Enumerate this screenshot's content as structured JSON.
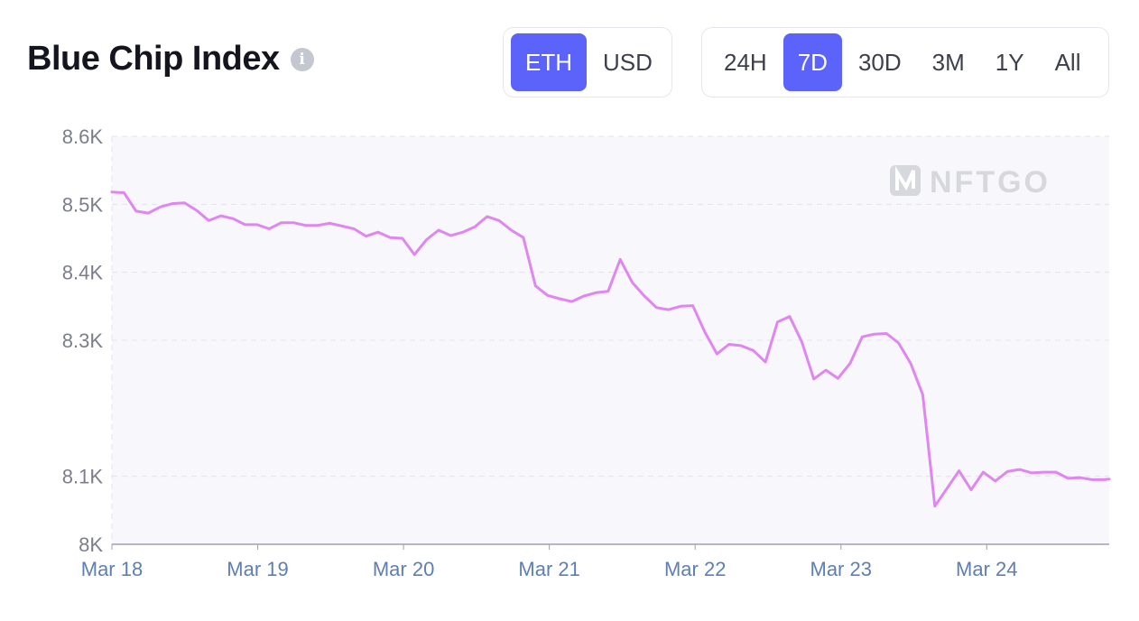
{
  "header": {
    "title": "Blue Chip Index",
    "info_icon": "info-icon"
  },
  "currency_toggle": {
    "options": [
      "ETH",
      "USD"
    ],
    "selected": "ETH"
  },
  "range_toggle": {
    "options": [
      "24H",
      "7D",
      "30D",
      "3M",
      "1Y",
      "All"
    ],
    "selected": "7D"
  },
  "watermark": "NFTGO",
  "colors": {
    "accent": "#5b63fb",
    "line": "#e086f0",
    "plot_bg": "#f8f7fc",
    "grid": "#e3e4ea",
    "axis": "#9ea0ad"
  },
  "chart_data": {
    "type": "line",
    "title": "",
    "xlabel": "",
    "ylabel": "",
    "grid": true,
    "ylim": [
      8000,
      8600
    ],
    "yticks": [
      8000,
      8100,
      8300,
      8400,
      8500,
      8600
    ],
    "ytick_labels": [
      "8K",
      "8.1K",
      "8.3K",
      "8.4K",
      "8.5K",
      "8.6K"
    ],
    "xlim": [
      0,
      6.84
    ],
    "xticks": [
      0,
      1,
      2,
      3,
      4,
      5,
      6
    ],
    "xtick_labels": [
      "Mar 18",
      "Mar 19",
      "Mar 20",
      "Mar 21",
      "Mar 22",
      "Mar 23",
      "Mar 24"
    ],
    "series": [
      {
        "x": [
          0,
          0.083,
          0.166,
          0.249,
          0.332,
          0.415,
          0.498,
          0.581,
          0.664,
          0.747,
          0.83,
          0.913,
          0.996,
          1.079,
          1.162,
          1.245,
          1.328,
          1.411,
          1.494,
          1.577,
          1.66,
          1.743,
          1.826,
          1.909,
          1.992,
          2.075,
          2.158,
          2.241,
          2.324,
          2.407,
          2.49,
          2.573,
          2.656,
          2.739,
          2.822,
          2.905,
          2.988,
          3.071,
          3.154,
          3.237,
          3.32,
          3.403,
          3.486,
          3.569,
          3.652,
          3.735,
          3.818,
          3.901,
          3.984,
          4.067,
          4.15,
          4.233,
          4.316,
          4.399,
          4.482,
          4.565,
          4.648,
          4.731,
          4.814,
          4.897,
          4.98,
          5.063,
          5.146,
          5.229,
          5.312,
          5.395,
          5.478,
          5.561,
          5.644,
          5.727,
          5.81,
          5.893,
          5.976,
          6.059,
          6.142,
          6.225,
          6.308,
          6.391,
          6.474,
          6.557,
          6.64,
          6.723,
          6.806,
          6.84
        ],
        "y": [
          8518,
          8517,
          8490,
          8487,
          8496,
          8501,
          8502,
          8491,
          8476,
          8483,
          8479,
          8470,
          8470,
          8464,
          8473,
          8473,
          8469,
          8469,
          8472,
          8468,
          8464,
          8453,
          8459,
          8451,
          8450,
          8426,
          8448,
          8462,
          8454,
          8459,
          8467,
          8482,
          8476,
          8462,
          8451,
          8380,
          8366,
          8361,
          8357,
          8365,
          8370,
          8372,
          8419,
          8385,
          8365,
          8348,
          8345,
          8350,
          8351,
          8312,
          8280,
          8294,
          8292,
          8285,
          8268,
          8327,
          8335,
          8298,
          8243,
          8256,
          8244,
          8266,
          8305,
          8309,
          8310,
          8296,
          8266,
          8220,
          8056,
          8082,
          8108,
          8080,
          8106,
          8093,
          8107,
          8110,
          8105,
          8106,
          8106,
          8097,
          8098,
          8095,
          8095,
          8096
        ]
      }
    ]
  }
}
